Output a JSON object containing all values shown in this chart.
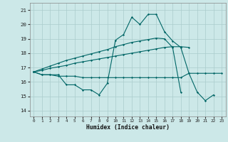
{
  "xlabel": "Humidex (Indice chaleur)",
  "xlim": [
    -0.5,
    23.5
  ],
  "ylim": [
    13.6,
    21.5
  ],
  "yticks": [
    14,
    15,
    16,
    17,
    18,
    19,
    20,
    21
  ],
  "xticks": [
    0,
    1,
    2,
    3,
    4,
    5,
    6,
    7,
    8,
    9,
    10,
    11,
    12,
    13,
    14,
    15,
    16,
    17,
    18,
    19,
    20,
    21,
    22,
    23
  ],
  "bg_color": "#cce8e8",
  "grid_color": "#aacccc",
  "line_color": "#006666",
  "lines": [
    {
      "x": [
        0,
        1,
        2,
        3,
        4,
        5,
        6,
        7,
        8,
        9,
        10,
        11,
        12,
        13,
        14,
        15,
        16,
        17,
        18,
        19,
        20,
        21,
        22
      ],
      "y": [
        16.7,
        16.5,
        16.5,
        16.5,
        15.8,
        15.8,
        15.45,
        15.45,
        15.1,
        15.9,
        18.9,
        19.3,
        20.5,
        20.0,
        20.7,
        20.7,
        19.5,
        18.85,
        18.4,
        16.6,
        15.3,
        14.7,
        15.1
      ]
    },
    {
      "x": [
        0,
        1,
        2,
        3,
        4,
        5,
        6,
        7,
        8,
        9,
        10,
        11,
        12,
        13,
        14,
        15,
        16,
        17,
        18,
        19,
        20,
        21,
        22,
        23
      ],
      "y": [
        16.7,
        16.5,
        16.5,
        16.4,
        16.4,
        16.4,
        16.3,
        16.3,
        16.3,
        16.3,
        16.3,
        16.3,
        16.3,
        16.3,
        16.3,
        16.3,
        16.3,
        16.3,
        16.3,
        16.6,
        16.6,
        16.6,
        16.6,
        16.6
      ]
    },
    {
      "x": [
        0,
        1,
        2,
        3,
        4,
        5,
        6,
        7,
        8,
        9,
        10,
        11,
        12,
        13,
        14,
        15,
        16,
        17,
        18,
        19
      ],
      "y": [
        16.7,
        16.8,
        16.95,
        17.05,
        17.15,
        17.3,
        17.4,
        17.5,
        17.6,
        17.7,
        17.8,
        17.9,
        18.0,
        18.1,
        18.2,
        18.3,
        18.4,
        18.45,
        18.45,
        18.4
      ]
    },
    {
      "x": [
        0,
        1,
        2,
        3,
        4,
        5,
        6,
        7,
        8,
        9,
        10,
        11,
        12,
        13,
        14,
        15,
        16,
        17,
        18
      ],
      "y": [
        16.7,
        16.9,
        17.1,
        17.3,
        17.5,
        17.65,
        17.8,
        17.95,
        18.1,
        18.25,
        18.45,
        18.6,
        18.75,
        18.85,
        18.95,
        19.05,
        19.0,
        18.4,
        15.3
      ]
    }
  ]
}
